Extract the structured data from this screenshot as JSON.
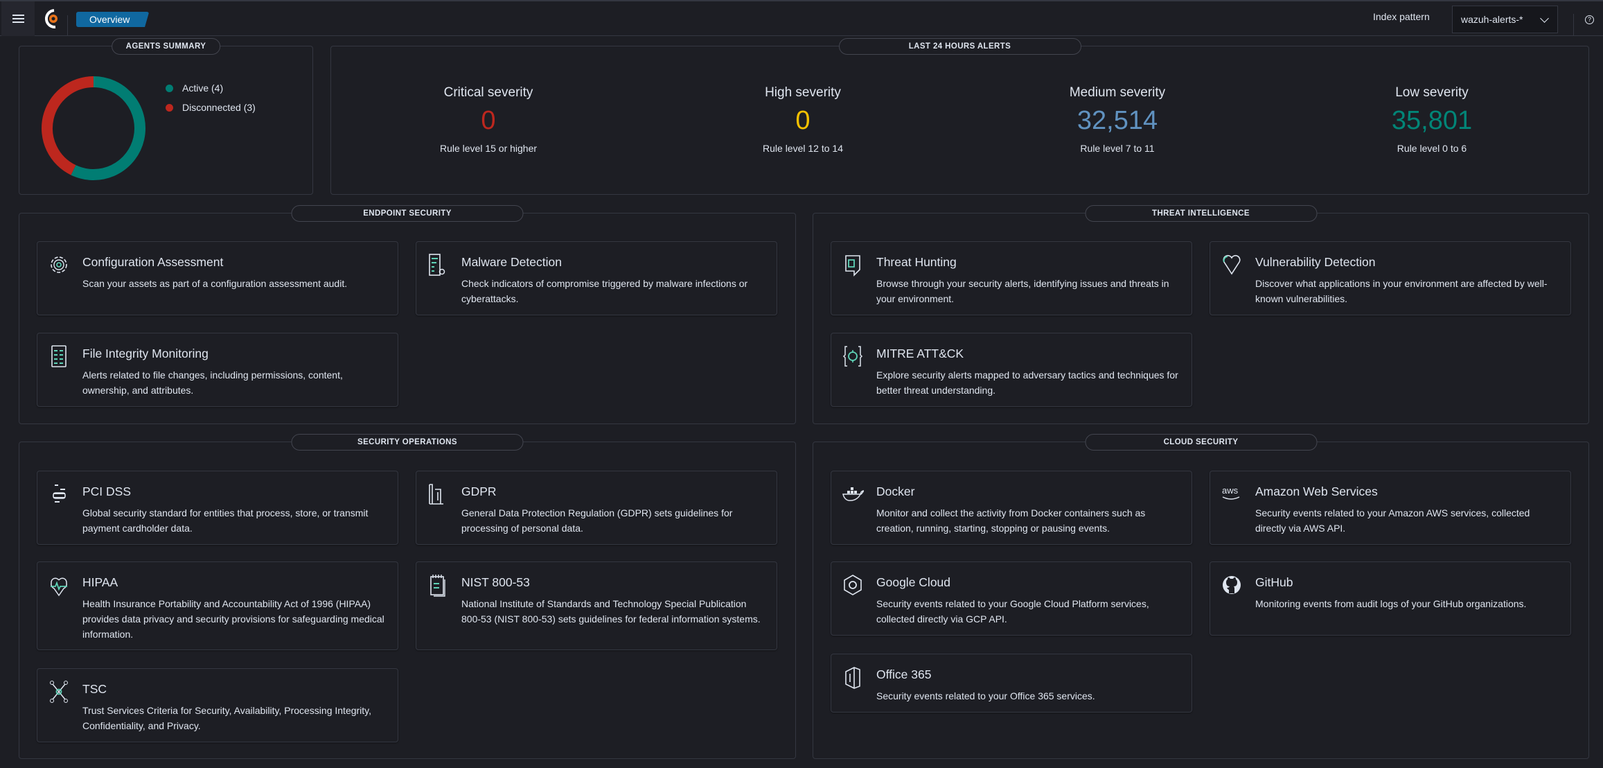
{
  "header": {
    "breadcrumb": "Overview",
    "index_pattern_label": "Index pattern",
    "index_pattern_value": "wazuh-alerts-*",
    "help": "?"
  },
  "agents_summary": {
    "title": "AGENTS SUMMARY",
    "chart_data": {
      "type": "pie",
      "donut": true,
      "categories": [
        "Active",
        "Disconnected"
      ],
      "values": [
        4,
        3
      ],
      "colors": [
        "#017d73",
        "#bd271e"
      ]
    },
    "legend": [
      {
        "label": "Active (4)",
        "color": "#017d73"
      },
      {
        "label": "Disconnected (3)",
        "color": "#bd271e"
      }
    ]
  },
  "alerts": {
    "title": "LAST 24 HOURS ALERTS",
    "items": [
      {
        "title": "Critical severity",
        "value": "0",
        "subtitle": "Rule level 15 or higher",
        "color": "#bd271e"
      },
      {
        "title": "High severity",
        "value": "0",
        "subtitle": "Rule level 12 to 14",
        "color": "#f5c000"
      },
      {
        "title": "Medium severity",
        "value": "32,514",
        "subtitle": "Rule level 7 to 11",
        "color": "#6092c0"
      },
      {
        "title": "Low severity",
        "value": "35,801",
        "subtitle": "Rule level 0 to 6",
        "color": "#028577"
      }
    ]
  },
  "endpoint": {
    "title": "ENDPOINT SECURITY",
    "cards": [
      {
        "title": "Configuration Assessment",
        "desc": "Scan your assets as part of a configuration assessment audit.",
        "icon": "gear-icon"
      },
      {
        "title": "Malware Detection",
        "desc": "Check indicators of compromise triggered by malware infections or cyberattacks.",
        "icon": "document-gear-icon"
      },
      {
        "title": "File Integrity Monitoring",
        "desc": "Alerts related to file changes, including permissions, content, ownership, and attributes.",
        "icon": "file-list-icon"
      }
    ]
  },
  "threat": {
    "title": "THREAT INTELLIGENCE",
    "cards": [
      {
        "title": "Threat Hunting",
        "desc": "Browse through your security alerts, identifying issues and threats in your environment.",
        "icon": "shield-icon"
      },
      {
        "title": "Vulnerability Detection",
        "desc": "Discover what applications in your environment are affected by well-known vulnerabilities.",
        "icon": "heart-broken-icon"
      },
      {
        "title": "MITRE ATT&CK",
        "desc": "Explore security alerts mapped to adversary tactics and techniques for better threat understanding.",
        "icon": "target-brackets-icon"
      }
    ]
  },
  "secops": {
    "title": "SECURITY OPERATIONS",
    "cards": [
      {
        "title": "PCI DSS",
        "desc": "Global security standard for entities that process, store, or transmit payment cardholder data.",
        "icon": "stack-lines-icon"
      },
      {
        "title": "GDPR",
        "desc": "General Data Protection Regulation (GDPR) sets guidelines for processing of personal data.",
        "icon": "building-icon"
      },
      {
        "title": "HIPAA",
        "desc": "Health Insurance Portability and Accountability Act of 1996 (HIPAA) provides data privacy and security provisions for safeguarding medical information.",
        "icon": "heartbeat-icon"
      },
      {
        "title": "NIST 800-53",
        "desc": "National Institute of Standards and Technology Special Publication 800-53 (NIST 800-53) sets guidelines for federal information systems.",
        "icon": "notepad-icon"
      },
      {
        "title": "TSC",
        "desc": "Trust Services Criteria for Security, Availability, Processing Integrity, Confidentiality, and Privacy.",
        "icon": "network-nodes-icon"
      }
    ]
  },
  "cloud": {
    "title": "CLOUD SECURITY",
    "cards": [
      {
        "title": "Docker",
        "desc": "Monitor and collect the activity from Docker containers such as creation, running, starting, stopping or pausing events.",
        "icon": "docker-icon"
      },
      {
        "title": "Amazon Web Services",
        "desc": "Security events related to your Amazon AWS services, collected directly via AWS API.",
        "icon": "aws-icon",
        "icon_text": "aws"
      },
      {
        "title": "Google Cloud",
        "desc": "Security events related to your Google Cloud Platform services, collected directly via GCP API.",
        "icon": "google-cloud-icon"
      },
      {
        "title": "GitHub",
        "desc": "Monitoring events from audit logs of your GitHub organizations.",
        "icon": "github-icon"
      },
      {
        "title": "Office 365",
        "desc": "Security events related to your Office 365 services.",
        "icon": "office-icon"
      }
    ]
  }
}
